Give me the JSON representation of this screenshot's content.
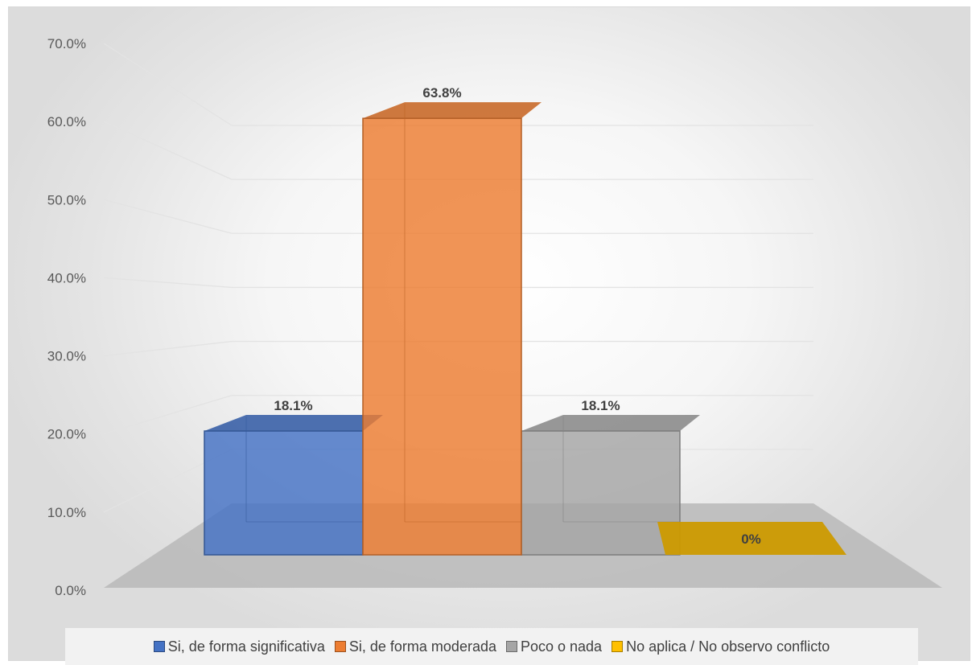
{
  "chart_data": {
    "type": "bar",
    "title": "",
    "xlabel": "",
    "ylabel": "",
    "categories": [
      "Si, de forma significativa",
      "Si, de forma moderada",
      "Poco o nada",
      "No aplica / No observo conflicto"
    ],
    "values": [
      18.1,
      63.8,
      18.1,
      0
    ],
    "data_labels": [
      "18.1%",
      "63.8%",
      "18.1%",
      "0%"
    ],
    "ylim": [
      0,
      70
    ],
    "yticks": [
      "0.0%",
      "10.0%",
      "20.0%",
      "30.0%",
      "40.0%",
      "50.0%",
      "60.0%",
      "70.0%"
    ],
    "grid": true,
    "three_d": true,
    "legend_position": "bottom",
    "colors": [
      "#4472c4",
      "#ed7d31",
      "#a5a5a5",
      "#ffc000"
    ]
  }
}
